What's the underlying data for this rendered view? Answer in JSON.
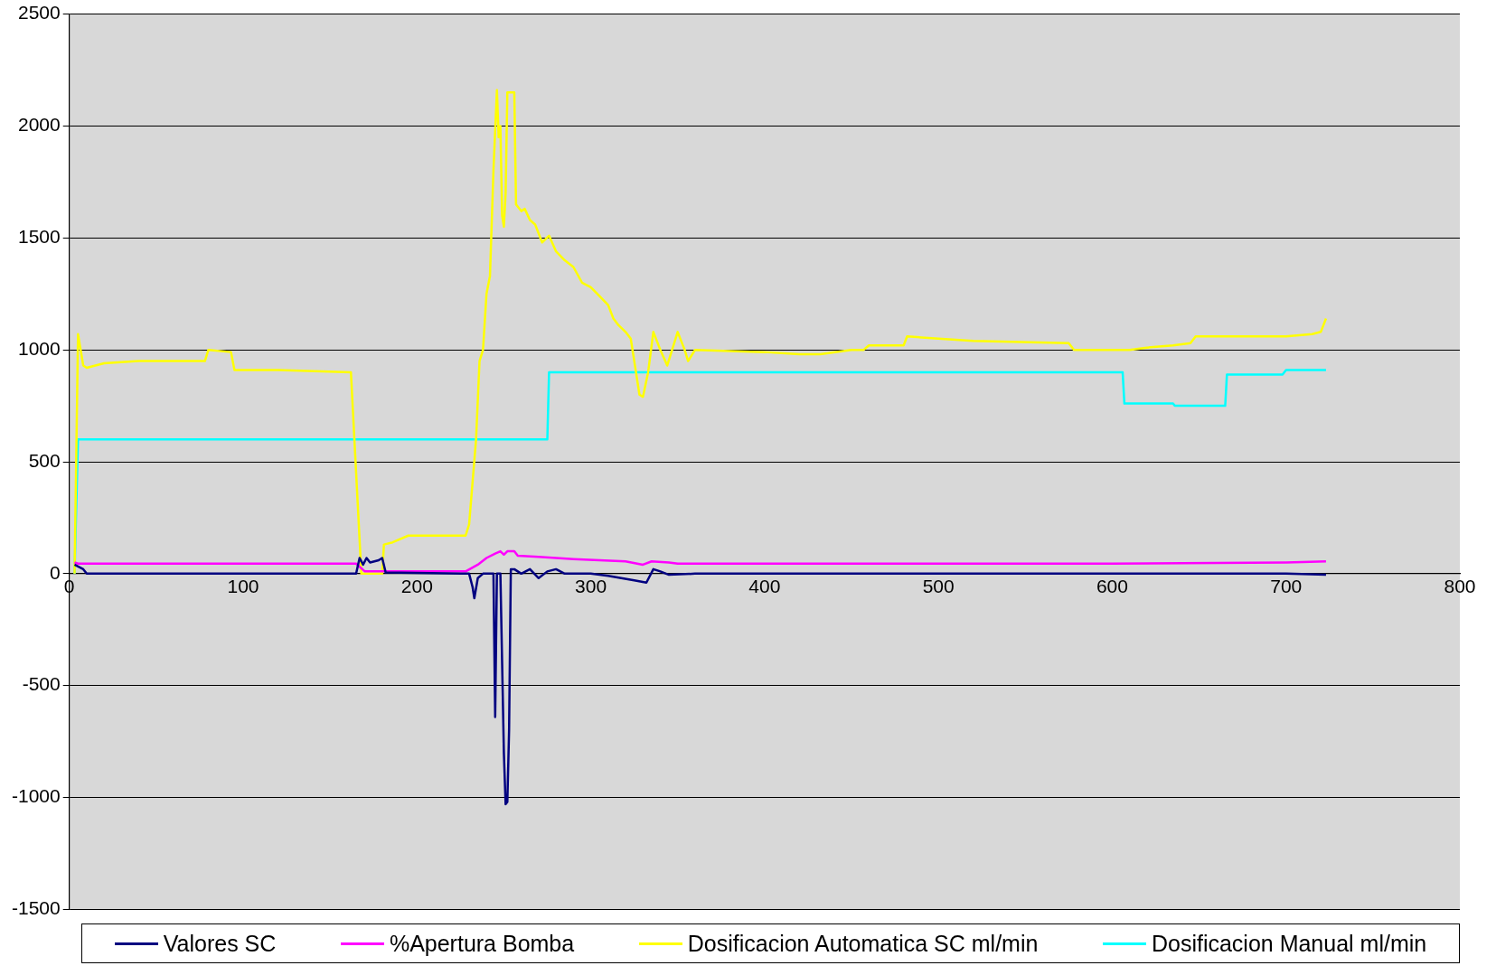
{
  "chart_data": {
    "type": "line",
    "xlim": [
      0,
      800
    ],
    "xticks": [
      0,
      100,
      200,
      300,
      400,
      500,
      600,
      700,
      800
    ],
    "ylim": [
      -1500,
      2500
    ],
    "yticks": [
      -1500,
      -1000,
      -500,
      0,
      500,
      1000,
      1500,
      2000,
      2500
    ],
    "grid": "y",
    "legend": "bottom",
    "marker": "none",
    "line_style": "solid",
    "series": [
      {
        "name": "Valores SC",
        "color": "#000080",
        "x": [
          3,
          8,
          10,
          80,
          165,
          167,
          169,
          171,
          173,
          178,
          180,
          182,
          230,
          232,
          233,
          235,
          238,
          244,
          245,
          246,
          248,
          250,
          251,
          252,
          253,
          254,
          256,
          260,
          265,
          270,
          275,
          280,
          285,
          300,
          310,
          325,
          332,
          336,
          340,
          345,
          360,
          450,
          700,
          723
        ],
        "values": [
          40,
          20,
          0,
          0,
          0,
          70,
          40,
          70,
          50,
          60,
          70,
          5,
          0,
          -60,
          -110,
          -20,
          0,
          0,
          -640,
          0,
          0,
          -800,
          -1030,
          -1020,
          -700,
          20,
          20,
          0,
          20,
          -20,
          10,
          20,
          0,
          0,
          -10,
          -30,
          -40,
          20,
          10,
          -5,
          0,
          0,
          0,
          -5
        ]
      },
      {
        "name": "%Apertura Bomba",
        "color": "#ff00ff",
        "x": [
          3,
          5,
          80,
          165,
          170,
          180,
          228,
          235,
          240,
          245,
          248,
          250,
          252,
          256,
          258,
          270,
          290,
          320,
          330,
          335,
          345,
          350,
          460,
          600,
          700,
          723
        ],
        "values": [
          50,
          45,
          45,
          45,
          10,
          10,
          10,
          40,
          70,
          90,
          100,
          85,
          100,
          100,
          80,
          75,
          65,
          55,
          40,
          55,
          50,
          45,
          45,
          45,
          50,
          55
        ]
      },
      {
        "name": "Dosificacion Automatica SC ml/min",
        "color": "#ffff00",
        "x": [
          3,
          5,
          8,
          10,
          20,
          40,
          78,
          80,
          93,
          95,
          120,
          162,
          168,
          180,
          181,
          186,
          195,
          228,
          230,
          234,
          236,
          238,
          240,
          242,
          244,
          246,
          247,
          248,
          249,
          250,
          251,
          252,
          256,
          257,
          260,
          262,
          265,
          268,
          272,
          276,
          280,
          285,
          290,
          295,
          300,
          305,
          310,
          313,
          316,
          320,
          323,
          326,
          328,
          330,
          333,
          336,
          340,
          344,
          350,
          354,
          356,
          360,
          400,
          420,
          432,
          450,
          457,
          460,
          480,
          482,
          500,
          520,
          575,
          578,
          610,
          620,
          635,
          645,
          648,
          700,
          715,
          720,
          723
        ],
        "values": [
          0,
          1070,
          930,
          920,
          940,
          950,
          950,
          1000,
          990,
          910,
          910,
          900,
          0,
          0,
          130,
          140,
          170,
          170,
          220,
          600,
          950,
          1000,
          1250,
          1330,
          1800,
          2160,
          1950,
          2000,
          1600,
          1550,
          1700,
          2150,
          2150,
          1650,
          1620,
          1630,
          1580,
          1560,
          1480,
          1510,
          1440,
          1400,
          1370,
          1300,
          1280,
          1240,
          1200,
          1140,
          1110,
          1080,
          1050,
          900,
          800,
          790,
          900,
          1080,
          1000,
          930,
          1080,
          1000,
          950,
          1000,
          990,
          980,
          980,
          1000,
          1000,
          1020,
          1020,
          1060,
          1050,
          1040,
          1030,
          1000,
          1000,
          1010,
          1020,
          1030,
          1060,
          1060,
          1070,
          1080,
          1140
        ]
      },
      {
        "name": "Dosificacion Manual ml/min",
        "color": "#00ffff",
        "x": [
          3,
          5,
          275,
          276,
          606,
          607,
          635,
          636,
          665,
          666,
          698,
          700,
          723
        ],
        "values": [
          0,
          600,
          600,
          900,
          900,
          760,
          760,
          750,
          750,
          890,
          890,
          910,
          910
        ]
      }
    ]
  }
}
